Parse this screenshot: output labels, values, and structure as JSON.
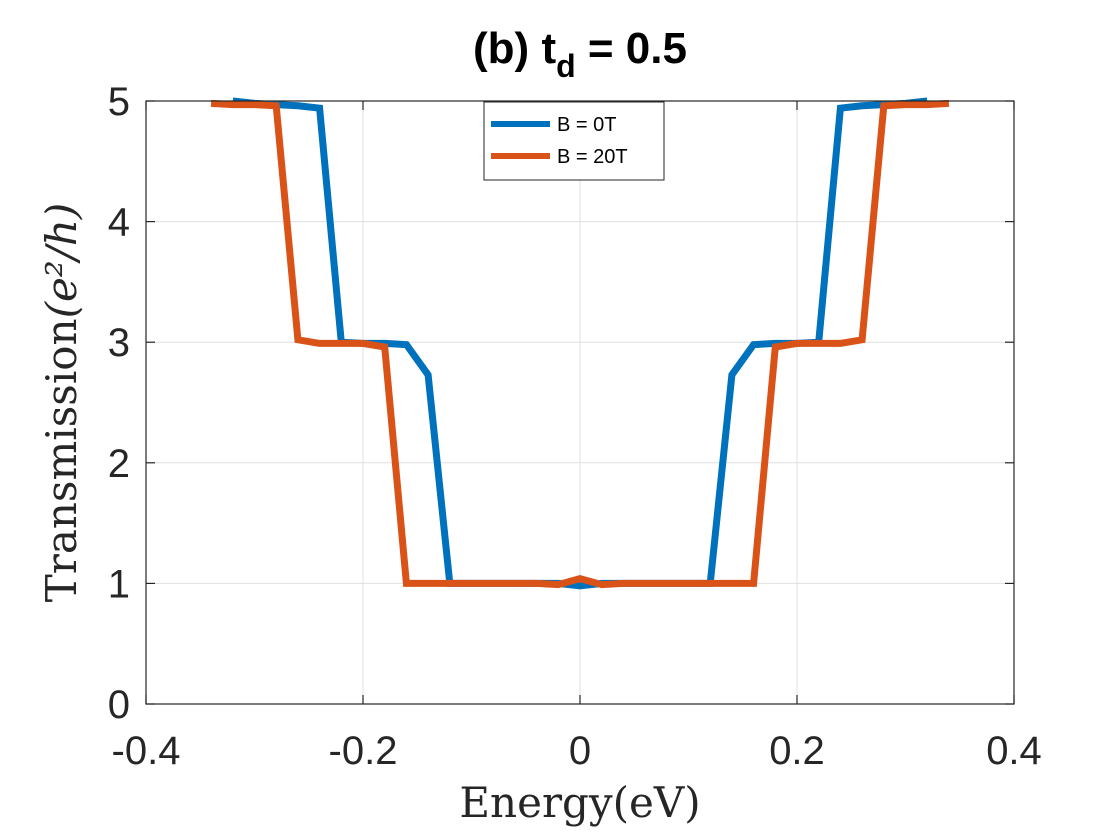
{
  "chart_data": {
    "type": "line",
    "title": {
      "main": "(b) t",
      "subscript": "d",
      "suffix": " = 0.5"
    },
    "xlabel": "Energy(eV)",
    "ylabel": {
      "prefix": "Transmission",
      "formula": "(e²/h)"
    },
    "xlim": [
      -0.4,
      0.4
    ],
    "ylim": [
      0,
      5
    ],
    "xticks": [
      -0.4,
      -0.2,
      0,
      0.2,
      0.4
    ],
    "xtick_labels": [
      "-0.4",
      "-0.2",
      "0",
      "0.2",
      "0.4"
    ],
    "yticks": [
      0,
      1,
      2,
      3,
      4,
      5
    ],
    "ytick_labels": [
      "0",
      "1",
      "2",
      "3",
      "4",
      "5"
    ],
    "grid": true,
    "legend_position": "top-center",
    "series": [
      {
        "name": "B = 0T",
        "color": "#0072BD",
        "x": [
          -0.32,
          -0.3,
          -0.28,
          -0.26,
          -0.24,
          -0.22,
          -0.2,
          -0.18,
          -0.16,
          -0.14,
          -0.12,
          -0.1,
          -0.08,
          -0.06,
          -0.04,
          -0.02,
          0,
          0.02,
          0.04,
          0.06,
          0.08,
          0.1,
          0.12,
          0.14,
          0.16,
          0.18,
          0.2,
          0.22,
          0.24,
          0.26,
          0.28,
          0.3,
          0.32
        ],
        "y": [
          5.0,
          4.98,
          4.97,
          4.96,
          4.94,
          3.0,
          2.99,
          2.99,
          2.98,
          2.73,
          1.0,
          1.0,
          1.0,
          1.0,
          1.0,
          1.0,
          0.98,
          1.0,
          1.0,
          1.0,
          1.0,
          1.0,
          1.0,
          2.73,
          2.98,
          2.99,
          2.99,
          3.0,
          4.94,
          4.96,
          4.97,
          4.98,
          5.0
        ]
      },
      {
        "name": "B = 20T",
        "color": "#D95319",
        "x": [
          -0.34,
          -0.32,
          -0.3,
          -0.28,
          -0.26,
          -0.24,
          -0.22,
          -0.2,
          -0.18,
          -0.16,
          -0.14,
          -0.12,
          -0.1,
          -0.08,
          -0.06,
          -0.04,
          -0.02,
          0,
          0.02,
          0.04,
          0.06,
          0.08,
          0.1,
          0.12,
          0.14,
          0.16,
          0.18,
          0.2,
          0.22,
          0.24,
          0.26,
          0.28,
          0.3,
          0.32,
          0.34
        ],
        "y": [
          4.98,
          4.97,
          4.97,
          4.96,
          3.02,
          2.99,
          2.99,
          2.99,
          2.96,
          1.0,
          1.0,
          1.0,
          1.0,
          1.0,
          1.0,
          1.0,
          0.99,
          1.04,
          0.99,
          1.0,
          1.0,
          1.0,
          1.0,
          1.0,
          1.0,
          1.0,
          2.96,
          2.99,
          2.99,
          2.99,
          3.02,
          4.96,
          4.97,
          4.97,
          4.98
        ]
      }
    ]
  }
}
